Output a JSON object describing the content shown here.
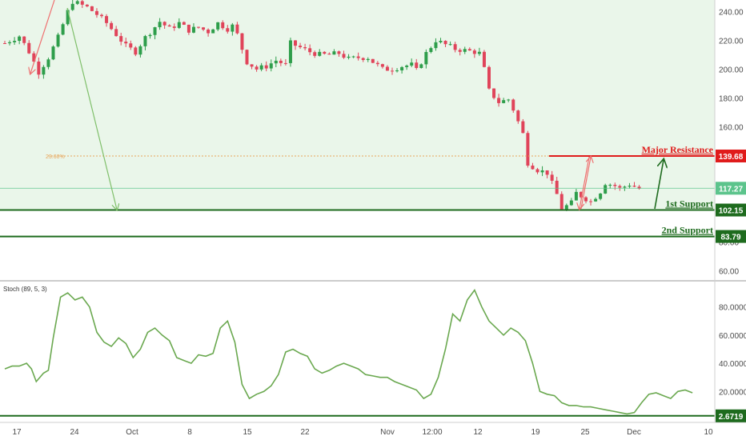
{
  "colors": {
    "background_top": "#eaf6ea",
    "up_candle": "#2e9e4b",
    "down_candle": "#e0445a",
    "support": "#1e6b1e",
    "resistance": "#e01b1b",
    "stoch_line": "#6aa84f",
    "current_price": "#5cc48c",
    "fib_line": "#e8a65a"
  },
  "chart_data": [
    {
      "type": "candlestick",
      "title": "",
      "y_ticks": [
        60,
        80,
        100,
        120,
        140,
        160,
        180,
        200,
        220,
        240
      ],
      "y_tick_labels": [
        "60.00",
        "80.00",
        "100.00",
        "120.00",
        "140.00",
        "160.00",
        "180.00",
        "200.00",
        "220.00",
        "240.00"
      ],
      "ylim": [
        53,
        248
      ],
      "x_tick_labels": [
        "17",
        "24",
        "Oct",
        "8",
        "15",
        "22",
        "Nov",
        "12:00",
        "12",
        "19",
        "25",
        "Dec",
        "10"
      ],
      "close_path": [
        [
          0,
          218
        ],
        [
          3,
          223
        ],
        [
          5,
          212
        ],
        [
          7,
          198
        ],
        [
          9,
          208
        ],
        [
          11,
          222
        ],
        [
          13,
          240
        ],
        [
          14,
          247
        ],
        [
          17,
          243
        ],
        [
          19,
          238
        ],
        [
          21,
          232
        ],
        [
          23,
          224
        ],
        [
          25,
          216
        ],
        [
          27,
          212
        ],
        [
          29,
          222
        ],
        [
          32,
          233
        ],
        [
          34,
          228
        ],
        [
          36,
          232
        ],
        [
          38,
          227
        ],
        [
          40,
          229
        ],
        [
          42,
          226
        ],
        [
          44,
          232
        ],
        [
          46,
          228
        ],
        [
          47,
          230
        ],
        [
          48,
          224
        ],
        [
          49,
          214
        ],
        [
          50,
          205
        ],
        [
          52,
          200
        ],
        [
          54,
          202
        ],
        [
          56,
          206
        ],
        [
          58,
          203
        ],
        [
          59,
          218
        ],
        [
          61,
          215
        ],
        [
          63,
          212
        ],
        [
          65,
          210
        ],
        [
          67,
          210
        ],
        [
          69,
          211
        ],
        [
          71,
          207
        ],
        [
          73,
          208
        ],
        [
          75,
          208
        ],
        [
          76,
          205
        ],
        [
          78,
          200
        ],
        [
          80,
          200
        ],
        [
          82,
          202
        ],
        [
          84,
          203
        ],
        [
          85,
          199
        ],
        [
          87,
          211
        ],
        [
          89,
          220
        ],
        [
          91,
          217
        ],
        [
          93,
          214
        ],
        [
          95,
          213
        ],
        [
          97,
          212
        ],
        [
          98,
          211
        ],
        [
          99,
          200
        ],
        [
          100,
          185
        ],
        [
          102,
          177
        ],
        [
          104,
          179
        ],
        [
          105,
          172
        ],
        [
          107,
          155
        ],
        [
          108,
          135
        ],
        [
          110,
          130
        ],
        [
          112,
          128
        ],
        [
          114,
          113
        ],
        [
          115,
          103
        ],
        [
          117,
          107
        ],
        [
          118,
          114
        ],
        [
          120,
          110
        ],
        [
          121,
          108
        ],
        [
          123,
          115
        ],
        [
          124,
          121
        ],
        [
          126,
          119
        ],
        [
          127,
          117
        ],
        [
          129,
          120
        ],
        [
          131,
          117
        ]
      ],
      "levels": [
        {
          "name": "Major Resistance",
          "value": 139.68,
          "label": "Major Resistance",
          "tag": "139.68",
          "color": "#e01b1b"
        },
        {
          "name": "1st Support",
          "value": 102.15,
          "label": "1st Support",
          "tag": "102.15",
          "color": "#1e6b1e"
        },
        {
          "name": "2nd Support",
          "value": 83.79,
          "label": "2nd Support",
          "tag": "83.79",
          "color": "#1e6b1e"
        }
      ],
      "current_price": {
        "value": 117.27,
        "tag": "117.27"
      },
      "fib_level": {
        "label": "23.60%",
        "value": 139.68
      }
    },
    {
      "type": "line",
      "title": "Stoch (89, 5, 3)",
      "y_ticks": [
        20,
        40,
        60,
        80
      ],
      "y_tick_labels": [
        "20.0000",
        "40.0000",
        "60.0000",
        "80.0000"
      ],
      "ylim": [
        -2,
        98
      ],
      "level": {
        "value": 2.6719,
        "tag": "2.6719"
      },
      "series": [
        {
          "values": [
            [
              0,
              36
            ],
            [
              1.5,
              38
            ],
            [
              3,
              38
            ],
            [
              4.5,
              40
            ],
            [
              5.5,
              36
            ],
            [
              6.5,
              27
            ],
            [
              8,
              33
            ],
            [
              9,
              35
            ],
            [
              10,
              58
            ],
            [
              11.5,
              87
            ],
            [
              13,
              90
            ],
            [
              14.5,
              85
            ],
            [
              16,
              87
            ],
            [
              17.5,
              80
            ],
            [
              19,
              62
            ],
            [
              20.5,
              55
            ],
            [
              22,
              52
            ],
            [
              23.5,
              58
            ],
            [
              25,
              54
            ],
            [
              26.5,
              44
            ],
            [
              28,
              50
            ],
            [
              29.5,
              62
            ],
            [
              31,
              65
            ],
            [
              32.5,
              60
            ],
            [
              34,
              56
            ],
            [
              35.5,
              44
            ],
            [
              37,
              42
            ],
            [
              38.5,
              40
            ],
            [
              40,
              46
            ],
            [
              41.5,
              45
            ],
            [
              43,
              47
            ],
            [
              44.5,
              65
            ],
            [
              46,
              70
            ],
            [
              47.5,
              55
            ],
            [
              49,
              25
            ],
            [
              50.5,
              15
            ],
            [
              52,
              18
            ],
            [
              53.5,
              20
            ],
            [
              55,
              24
            ],
            [
              56.5,
              32
            ],
            [
              58,
              48
            ],
            [
              59.5,
              50
            ],
            [
              61,
              47
            ],
            [
              62.5,
              45
            ],
            [
              64,
              36
            ],
            [
              65.5,
              33
            ],
            [
              67,
              35
            ],
            [
              68.5,
              38
            ],
            [
              70,
              40
            ],
            [
              71.5,
              38
            ],
            [
              73,
              36
            ],
            [
              74.5,
              32
            ],
            [
              76,
              31
            ],
            [
              77.5,
              30
            ],
            [
              79,
              30
            ],
            [
              80.5,
              27
            ],
            [
              82,
              25
            ],
            [
              83.5,
              23
            ],
            [
              85,
              21
            ],
            [
              86.5,
              15
            ],
            [
              88,
              18
            ],
            [
              89.5,
              30
            ],
            [
              91,
              50
            ],
            [
              92.5,
              75
            ],
            [
              94,
              70
            ],
            [
              95.5,
              85
            ],
            [
              97,
              92
            ],
            [
              98.5,
              80
            ],
            [
              100,
              70
            ],
            [
              101.5,
              65
            ],
            [
              103,
              60
            ],
            [
              104.5,
              65
            ],
            [
              106,
              62
            ],
            [
              107.5,
              56
            ],
            [
              109,
              40
            ],
            [
              110.5,
              20
            ],
            [
              112,
              18
            ],
            [
              113.5,
              17
            ],
            [
              115,
              12
            ],
            [
              116.5,
              10
            ],
            [
              118,
              10
            ],
            [
              119.5,
              9
            ],
            [
              121,
              9
            ],
            [
              122.5,
              8
            ],
            [
              124,
              7
            ],
            [
              125.5,
              6
            ],
            [
              127,
              5
            ],
            [
              128.5,
              4
            ],
            [
              130,
              5
            ],
            [
              131.5,
              12
            ],
            [
              133,
              18
            ],
            [
              134.5,
              19
            ],
            [
              136,
              17
            ],
            [
              137.5,
              15
            ],
            [
              139,
              20
            ],
            [
              140.5,
              21
            ],
            [
              142,
              19
            ]
          ]
        }
      ]
    }
  ]
}
